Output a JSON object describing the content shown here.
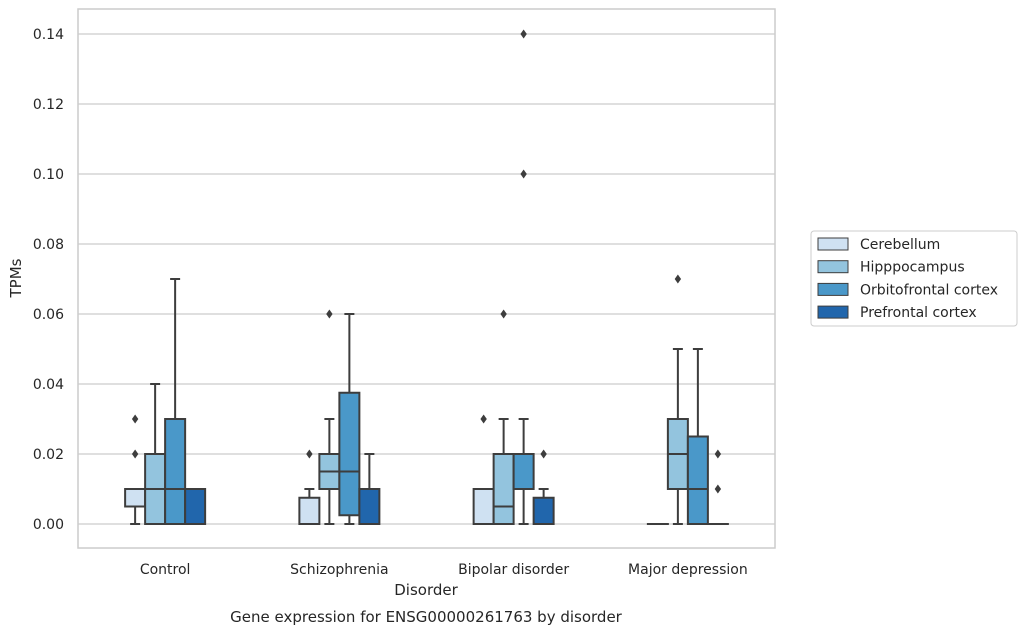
{
  "chart_data": {
    "type": "box",
    "title": "",
    "caption": "Gene expression for ENSG00000261763 by disorder",
    "xlabel": "Disorder",
    "ylabel": "TPMs",
    "ylim": [
      -0.007,
      0.147
    ],
    "yticks": [
      0.0,
      0.02,
      0.04,
      0.06,
      0.08,
      0.1,
      0.12,
      0.14
    ],
    "ytick_labels": [
      "0.00",
      "0.02",
      "0.04",
      "0.06",
      "0.08",
      "0.10",
      "0.12",
      "0.14"
    ],
    "grid": "horizontal",
    "legend_position": "right",
    "categories": [
      "Control",
      "Schizophrenia",
      "Bipolar disorder",
      "Major depression"
    ],
    "series": [
      {
        "name": "Cerebellum",
        "color": "#cfe1f2",
        "boxes": [
          {
            "whislo": 0.0,
            "q1": 0.005,
            "med": 0.005,
            "q3": 0.01,
            "whishi": 0.01,
            "fliers": [
              0.02,
              0.03
            ]
          },
          {
            "whislo": 0.0,
            "q1": 0.0,
            "med": 0.0,
            "q3": 0.0075,
            "whishi": 0.01,
            "fliers": [
              0.02
            ]
          },
          {
            "whislo": 0.0,
            "q1": 0.0,
            "med": 0.0,
            "q3": 0.01,
            "whishi": 0.01,
            "fliers": [
              0.03
            ]
          },
          {
            "whislo": 0.0,
            "q1": 0.0,
            "med": 0.0,
            "q3": 0.0,
            "whishi": 0.0,
            "fliers": []
          }
        ]
      },
      {
        "name": "Hipppocampus",
        "color": "#93c4de",
        "boxes": [
          {
            "whislo": 0.0,
            "q1": 0.0,
            "med": 0.01,
            "q3": 0.02,
            "whishi": 0.04,
            "fliers": []
          },
          {
            "whislo": 0.0,
            "q1": 0.01,
            "med": 0.015,
            "q3": 0.02,
            "whishi": 0.03,
            "fliers": [
              0.06
            ]
          },
          {
            "whislo": 0.0,
            "q1": 0.0,
            "med": 0.005,
            "q3": 0.02,
            "whishi": 0.03,
            "fliers": [
              0.06
            ]
          },
          {
            "whislo": 0.0,
            "q1": 0.01,
            "med": 0.02,
            "q3": 0.03,
            "whishi": 0.05,
            "fliers": [
              0.07
            ]
          }
        ]
      },
      {
        "name": "Orbitofrontal cortex",
        "color": "#4a98c9",
        "boxes": [
          {
            "whislo": 0.0,
            "q1": 0.0,
            "med": 0.01,
            "q3": 0.03,
            "whishi": 0.07,
            "fliers": []
          },
          {
            "whislo": 0.0,
            "q1": 0.0025,
            "med": 0.015,
            "q3": 0.0375,
            "whishi": 0.06,
            "fliers": []
          },
          {
            "whislo": 0.0,
            "q1": 0.01,
            "med": 0.02,
            "q3": 0.02,
            "whishi": 0.03,
            "fliers": [
              0.1,
              0.14
            ]
          },
          {
            "whislo": 0.0,
            "q1": 0.0,
            "med": 0.01,
            "q3": 0.025,
            "whishi": 0.05,
            "fliers": []
          }
        ]
      },
      {
        "name": "Prefrontal cortex",
        "color": "#2166ac",
        "boxes": [
          {
            "whislo": 0.0,
            "q1": 0.0,
            "med": 0.01,
            "q3": 0.01,
            "whishi": 0.01,
            "fliers": []
          },
          {
            "whislo": 0.0,
            "q1": 0.0,
            "med": 0.01,
            "q3": 0.01,
            "whishi": 0.02,
            "fliers": []
          },
          {
            "whislo": 0.0,
            "q1": 0.0,
            "med": 0.0,
            "q3": 0.0075,
            "whishi": 0.01,
            "fliers": [
              0.02
            ]
          },
          {
            "whislo": 0.0,
            "q1": 0.0,
            "med": 0.0,
            "q3": 0.0,
            "whishi": 0.0,
            "fliers": [
              0.01,
              0.02
            ]
          }
        ]
      }
    ]
  }
}
